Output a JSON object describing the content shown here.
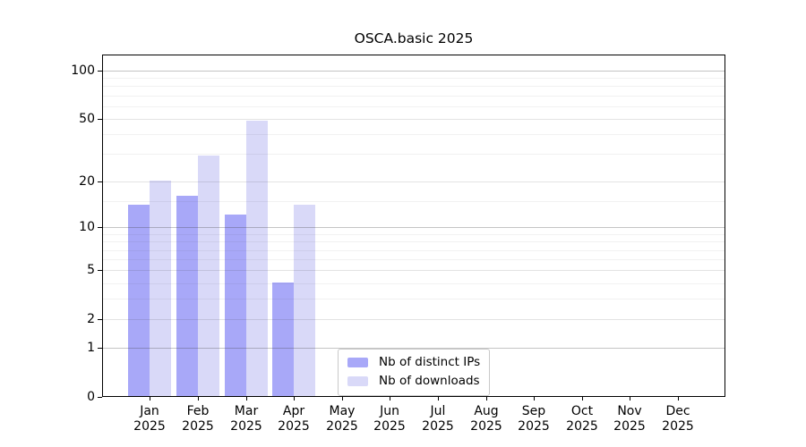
{
  "title": "OSCA.basic 2025",
  "legend": {
    "items": [
      {
        "label": "Nb of distinct IPs",
        "color": "#a8a8f8"
      },
      {
        "label": "Nb of downloads",
        "color": "#d9d9f8"
      }
    ]
  },
  "chart_data": {
    "type": "bar",
    "title": "OSCA.basic 2025",
    "categories": [
      "Jan 2025",
      "Feb 2025",
      "Mar 2025",
      "Apr 2025",
      "May 2025",
      "Jun 2025",
      "Jul 2025",
      "Aug 2025",
      "Sep 2025",
      "Oct 2025",
      "Nov 2025",
      "Dec 2025"
    ],
    "series": [
      {
        "name": "Nb of distinct IPs",
        "color": "#a8a8f8",
        "values": [
          14,
          16,
          12,
          4,
          0,
          0,
          0,
          0,
          0,
          0,
          0,
          0
        ]
      },
      {
        "name": "Nb of downloads",
        "color": "#d9d9f8",
        "values": [
          20,
          29,
          48,
          14,
          0,
          0,
          0,
          0,
          0,
          0,
          0,
          0
        ]
      }
    ],
    "xlabel": "",
    "ylabel": "",
    "yscale": "log1p",
    "ylim": [
      0,
      120
    ],
    "yticks": [
      100,
      50,
      20,
      10,
      5,
      2,
      1,
      0
    ],
    "major_gridlines": [
      100,
      10,
      1
    ],
    "mid_gridlines": [
      50,
      20,
      5,
      2
    ],
    "minor_gridlines": [
      90,
      80,
      70,
      60,
      40,
      30,
      15,
      9,
      8,
      7,
      6,
      4,
      3
    ],
    "grid": true,
    "legend_position": "bottom-center"
  }
}
